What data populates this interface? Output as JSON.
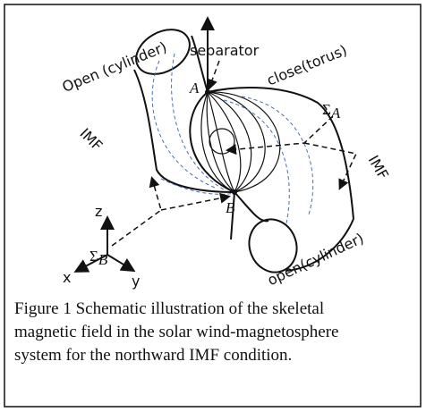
{
  "labels": {
    "separator": "separator",
    "open_cylinder_top": "Open (cylinder)",
    "close_torus": "close(torus)",
    "imf_left": "IMF",
    "imf_right": "IMF",
    "open_cylinder_bottom": "open(cylinder)",
    "point_a": "A",
    "point_b": "B",
    "sigma_a": {
      "symbol": "Σ",
      "subscript": "A"
    },
    "sigma_b": {
      "symbol": "Σ",
      "subscript": "B"
    }
  },
  "axes": {
    "z": "z",
    "x": "x",
    "y": "y"
  },
  "caption": "Figure 1 Schematic illustration of the skeletal magnetic field in the solar wind-magnetosphere system for the northward IMF condition."
}
